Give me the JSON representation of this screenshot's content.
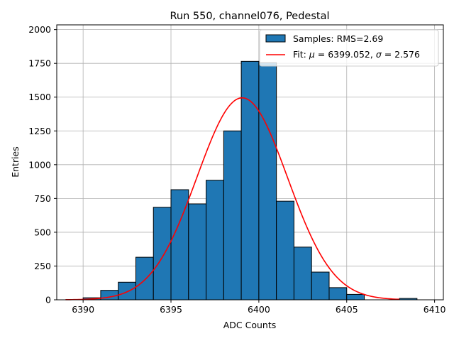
{
  "chart_data": {
    "type": "bar",
    "title": "Run 550, channel076, Pedestal",
    "xlabel": "ADC Counts",
    "ylabel": "Entries",
    "xlim": [
      6388.5,
      6410.5
    ],
    "ylim": [
      0,
      2035
    ],
    "xticks": [
      6390,
      6395,
      6400,
      6405,
      6410
    ],
    "yticks": [
      0,
      250,
      500,
      750,
      1000,
      1250,
      1500,
      1750,
      2000
    ],
    "grid": true,
    "legend_position": "top-right",
    "bins": {
      "edges": [
        6390,
        6391,
        6392,
        6393,
        6394,
        6395,
        6396,
        6397,
        6398,
        6399,
        6400,
        6401,
        6402,
        6403,
        6404,
        6405,
        6406,
        6407,
        6408,
        6409,
        6410
      ],
      "counts": [
        15,
        70,
        130,
        315,
        685,
        815,
        710,
        885,
        1250,
        1765,
        1755,
        730,
        390,
        205,
        90,
        40,
        0,
        0,
        10,
        0
      ]
    },
    "series": [
      {
        "name": "Samples: RMS=2.69",
        "kind": "histogram",
        "color": "#1f77b4"
      },
      {
        "name": "Fit: μ = 6399.052, σ = 2.576",
        "kind": "gaussian",
        "color": "#ff0000",
        "mu": 6399.052,
        "sigma": 2.576,
        "amplitude": 1495,
        "x_range": [
          6389,
          6408
        ]
      }
    ],
    "legend": {
      "samples_prefix": "Samples: RMS=2.69",
      "fit_prefix": "Fit: ",
      "fit_mu_symbol": "μ",
      "fit_mu_value": " = 6399.052, ",
      "fit_sigma_symbol": "σ",
      "fit_sigma_value": " = 2.576"
    }
  }
}
